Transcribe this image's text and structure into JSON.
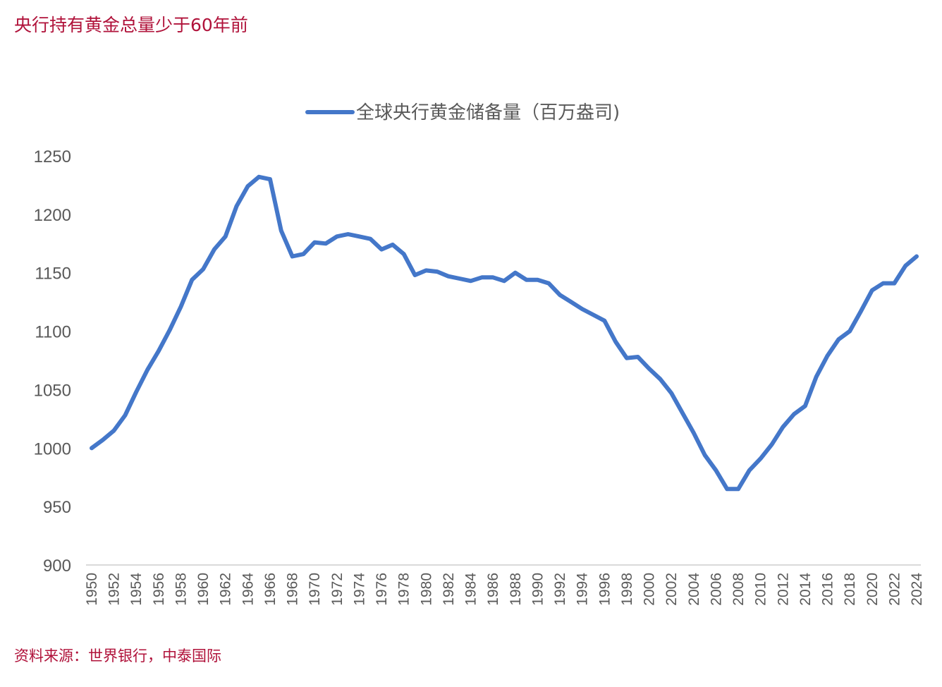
{
  "title": "央行持有黄金总量少于60年前",
  "source": "资料来源：世界银行，中泰国际",
  "chart_data": {
    "type": "line",
    "title": "",
    "xlabel": "",
    "ylabel": "",
    "ylim": [
      900,
      1250
    ],
    "yticks": [
      900,
      950,
      1000,
      1050,
      1100,
      1150,
      1200,
      1250
    ],
    "legend_position": "top",
    "grid": false,
    "x": [
      1950,
      1951,
      1952,
      1953,
      1954,
      1955,
      1956,
      1957,
      1958,
      1959,
      1960,
      1961,
      1962,
      1963,
      1964,
      1965,
      1966,
      1967,
      1968,
      1969,
      1970,
      1971,
      1972,
      1973,
      1974,
      1975,
      1976,
      1977,
      1978,
      1979,
      1980,
      1981,
      1982,
      1983,
      1984,
      1985,
      1986,
      1987,
      1988,
      1989,
      1990,
      1991,
      1992,
      1993,
      1994,
      1995,
      1996,
      1997,
      1998,
      1999,
      2000,
      2001,
      2002,
      2003,
      2004,
      2005,
      2006,
      2007,
      2008,
      2009,
      2010,
      2011,
      2012,
      2013,
      2014,
      2015,
      2016,
      2017,
      2018,
      2019,
      2020,
      2021,
      2022,
      2023,
      2024
    ],
    "xticks": [
      1950,
      1952,
      1954,
      1956,
      1958,
      1960,
      1962,
      1964,
      1966,
      1968,
      1970,
      1972,
      1974,
      1976,
      1978,
      1980,
      1982,
      1984,
      1986,
      1988,
      1990,
      1992,
      1994,
      1996,
      1998,
      2000,
      2002,
      2004,
      2006,
      2008,
      2010,
      2012,
      2014,
      2016,
      2018,
      2020,
      2022,
      2024
    ],
    "series": [
      {
        "name": "全球央行黄金储备量（百万盎司)",
        "color": "#4477c9",
        "values": [
          1000,
          1007,
          1015,
          1028,
          1048,
          1067,
          1083,
          1101,
          1121,
          1144,
          1153,
          1170,
          1181,
          1207,
          1224,
          1232,
          1230,
          1186,
          1164,
          1166,
          1176,
          1175,
          1181,
          1183,
          1181,
          1179,
          1170,
          1174,
          1166,
          1148,
          1152,
          1151,
          1147,
          1145,
          1143,
          1146,
          1146,
          1143,
          1150,
          1144,
          1144,
          1141,
          1131,
          1125,
          1119,
          1114,
          1109,
          1091,
          1077,
          1078,
          1068,
          1059,
          1047,
          1030,
          1013,
          994,
          981,
          965,
          965,
          981,
          991,
          1003,
          1018,
          1029,
          1036,
          1061,
          1079,
          1093,
          1100,
          1117,
          1135,
          1141,
          1141,
          1156,
          1164
        ]
      }
    ]
  }
}
